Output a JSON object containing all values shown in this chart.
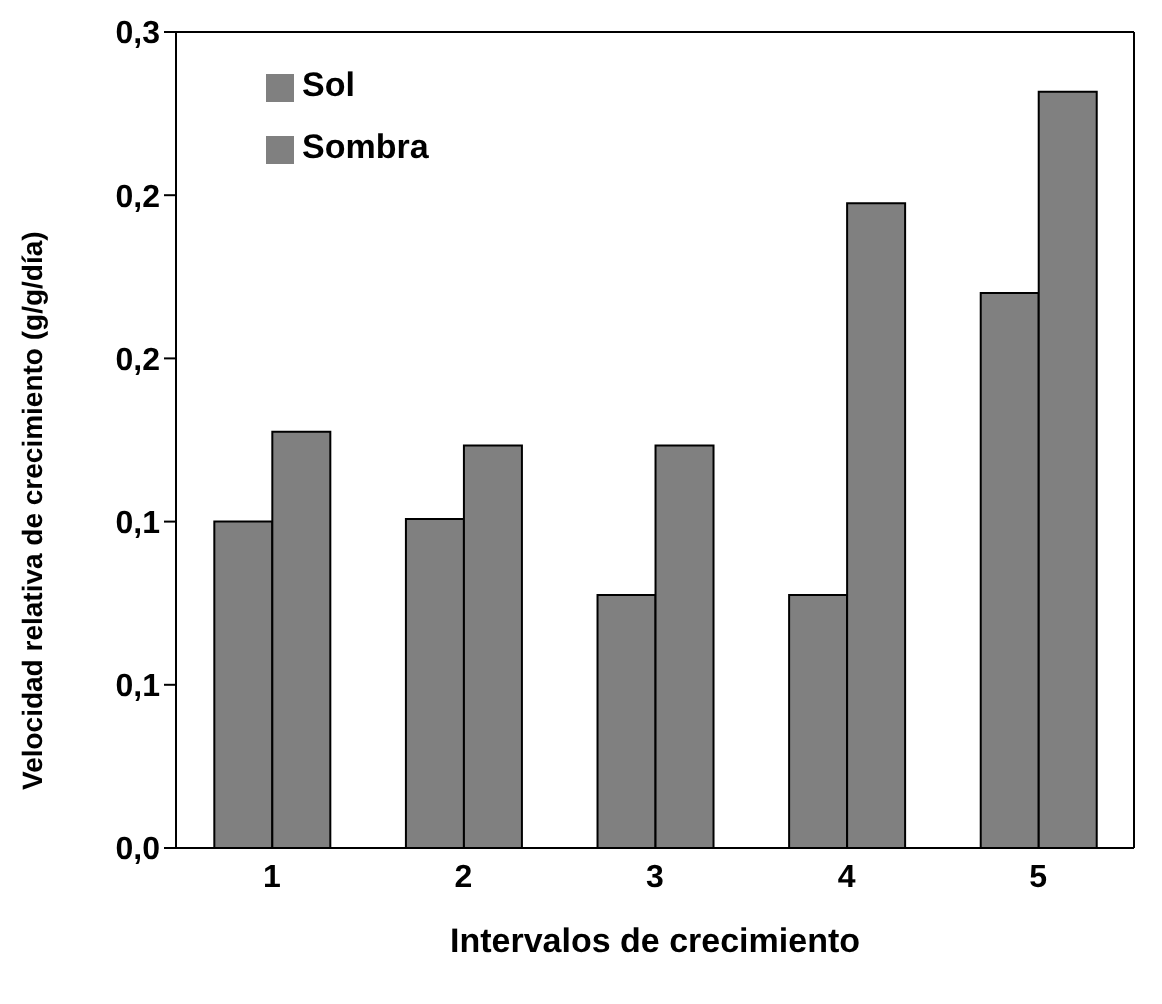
{
  "chart_data": {
    "type": "bar",
    "xlabel": "Intervalos de crecimiento",
    "ylabel": "Velocidad relativa de crecimiento (g/g/día)",
    "categories": [
      "1",
      "2",
      "3",
      "4",
      "5"
    ],
    "series": [
      {
        "name": "Sol",
        "color": "#808080",
        "values": [
          0.12,
          0.121,
          0.093,
          0.093,
          0.204
        ]
      },
      {
        "name": "Sombra",
        "color": "#808080",
        "values": [
          0.153,
          0.148,
          0.148,
          0.237,
          0.278
        ]
      }
    ],
    "ylim": [
      0,
      0.3
    ],
    "yticks": [
      {
        "value": 0,
        "label": "0,0"
      },
      {
        "value": 0.06,
        "label": "0,1"
      },
      {
        "value": 0.12,
        "label": "0,1"
      },
      {
        "value": 0.18,
        "label": "0,2"
      },
      {
        "value": 0.24,
        "label": "0,2"
      },
      {
        "value": 0.3,
        "label": "0,3"
      }
    ],
    "grid": false,
    "legend": "top left"
  }
}
